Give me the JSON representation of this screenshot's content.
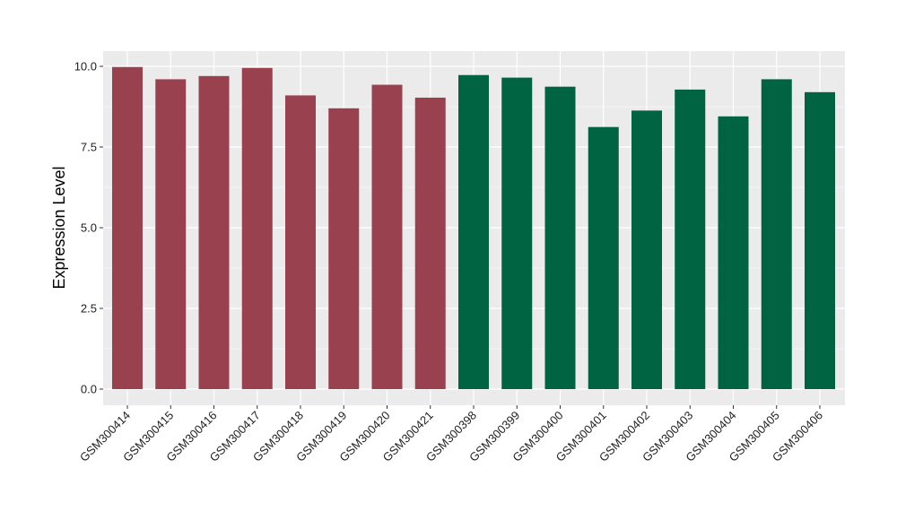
{
  "chart_data": {
    "type": "bar",
    "title": "",
    "xlabel": "",
    "ylabel": "Expression Level",
    "ylim": [
      0,
      10.4
    ],
    "yticks": [
      0.0,
      2.5,
      5.0,
      7.5,
      10.0
    ],
    "ytick_labels": [
      "0.0",
      "2.5",
      "5.0",
      "7.5",
      "10.0"
    ],
    "grid": true,
    "legend": "none",
    "colors": {
      "group_1": "#9a4150",
      "group_2": "#006443",
      "panel": "#ebebeb",
      "grid": "#ffffff"
    },
    "categories": [
      "GSM300414",
      "GSM300415",
      "GSM300416",
      "GSM300417",
      "GSM300418",
      "GSM300419",
      "GSM300420",
      "GSM300421",
      "GSM300398",
      "GSM300399",
      "GSM300400",
      "GSM300401",
      "GSM300402",
      "GSM300403",
      "GSM300404",
      "GSM300405",
      "GSM300406"
    ],
    "values": [
      9.98,
      9.6,
      9.7,
      9.95,
      9.1,
      8.7,
      9.43,
      9.03,
      9.73,
      9.65,
      9.37,
      8.12,
      8.63,
      9.28,
      8.45,
      9.6,
      9.2
    ],
    "groups": [
      1,
      1,
      1,
      1,
      1,
      1,
      1,
      1,
      2,
      2,
      2,
      2,
      2,
      2,
      2,
      2,
      2
    ]
  }
}
